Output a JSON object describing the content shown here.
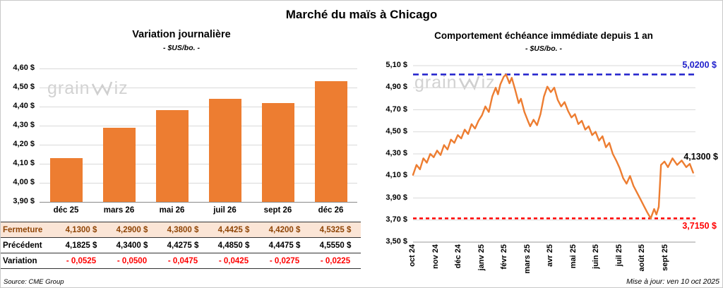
{
  "header": {
    "title": "Marché du maïs à Chicago"
  },
  "footer": {
    "source": "Source: CME Group",
    "updated": "Mise à jour: ven 10 oct 2025"
  },
  "watermark": {
    "prefix": "grain",
    "suffix": "iz"
  },
  "colors": {
    "bar": "#ED7D31",
    "line": "#ED7D31",
    "max_line": "#1F1FCC",
    "min_line": "#FF0000",
    "negative_text": "#FF0000",
    "highlight_row_bg": "#FBE5D6",
    "highlight_row_text": "#8F4506"
  },
  "chart_data": [
    {
      "type": "bar",
      "title": "Variation journalière",
      "subtitle": "- $US/bo. -",
      "categories": [
        "déc 25",
        "mars 26",
        "mai 26",
        "juil 26",
        "sept 26",
        "déc 26"
      ],
      "values": [
        4.13,
        4.29,
        4.38,
        4.4425,
        4.42,
        4.5325
      ],
      "ylim": [
        3.9,
        4.6
      ],
      "y_ticks": [
        "4,60 $",
        "4,50 $",
        "4,40 $",
        "4,30 $",
        "4,20 $",
        "4,10 $",
        "4,00 $",
        "3,90 $"
      ],
      "grid": true,
      "table": {
        "rows": [
          {
            "label": "Fermeture",
            "style": "highlight",
            "values": [
              "4,1300  $",
              "4,2900  $",
              "4,3800  $",
              "4,4425  $",
              "4,4200  $",
              "4,5325  $"
            ]
          },
          {
            "label": "Précédent",
            "style": "normal",
            "values": [
              "4,1825  $",
              "4,3400  $",
              "4,4275  $",
              "4,4850  $",
              "4,4475  $",
              "4,5550  $"
            ]
          },
          {
            "label": "Variation",
            "style": "negative",
            "values": [
              "- 0,0525",
              "- 0,0500",
              "- 0,0475",
              "- 0,0425",
              "- 0,0275",
              "- 0,0225"
            ]
          }
        ]
      }
    },
    {
      "type": "line",
      "title": "Comportement échéance immédiate depuis 1 an",
      "subtitle": "- $US/bo. -",
      "x_ticks": [
        "oct 24",
        "nov 24",
        "déc 24",
        "janv 25",
        "févr 25",
        "mars 25",
        "avr 25",
        "mai 25",
        "juin 25",
        "juil 25",
        "août 25",
        "sept 25"
      ],
      "xlim": [
        0,
        12.3
      ],
      "ylim": [
        3.5,
        5.1
      ],
      "y_ticks": [
        "5,10 $",
        "4,90 $",
        "4,70 $",
        "4,50 $",
        "4,30 $",
        "4,10 $",
        "3,90 $",
        "3,70 $",
        "3,50 $"
      ],
      "grid": true,
      "max_annotation": {
        "value": 5.02,
        "label": "5,0200 $"
      },
      "min_annotation": {
        "value": 3.715,
        "label": "3,7150 $"
      },
      "last_annotation": {
        "value": 4.13,
        "label": "4,1300 $"
      },
      "series": [
        {
          "points": [
            [
              0,
              4.11
            ],
            [
              0.15,
              4.2
            ],
            [
              0.3,
              4.16
            ],
            [
              0.45,
              4.26
            ],
            [
              0.6,
              4.22
            ],
            [
              0.75,
              4.3
            ],
            [
              0.9,
              4.27
            ],
            [
              1.05,
              4.33
            ],
            [
              1.2,
              4.29
            ],
            [
              1.35,
              4.38
            ],
            [
              1.5,
              4.34
            ],
            [
              1.65,
              4.43
            ],
            [
              1.8,
              4.4
            ],
            [
              1.95,
              4.47
            ],
            [
              2.1,
              4.44
            ],
            [
              2.25,
              4.52
            ],
            [
              2.4,
              4.48
            ],
            [
              2.55,
              4.57
            ],
            [
              2.7,
              4.53
            ],
            [
              2.85,
              4.6
            ],
            [
              3,
              4.65
            ],
            [
              3.15,
              4.73
            ],
            [
              3.3,
              4.68
            ],
            [
              3.45,
              4.82
            ],
            [
              3.6,
              4.9
            ],
            [
              3.7,
              4.84
            ],
            [
              3.8,
              4.93
            ],
            [
              3.95,
              5
            ],
            [
              4.05,
              5.02
            ],
            [
              4.2,
              4.94
            ],
            [
              4.3,
              4.99
            ],
            [
              4.45,
              4.88
            ],
            [
              4.6,
              4.76
            ],
            [
              4.7,
              4.8
            ],
            [
              4.85,
              4.68
            ],
            [
              5,
              4.6
            ],
            [
              5.1,
              4.55
            ],
            [
              5.25,
              4.61
            ],
            [
              5.4,
              4.56
            ],
            [
              5.55,
              4.66
            ],
            [
              5.7,
              4.82
            ],
            [
              5.85,
              4.91
            ],
            [
              6,
              4.86
            ],
            [
              6.15,
              4.9
            ],
            [
              6.3,
              4.79
            ],
            [
              6.45,
              4.73
            ],
            [
              6.6,
              4.77
            ],
            [
              6.75,
              4.69
            ],
            [
              6.9,
              4.63
            ],
            [
              7.05,
              4.66
            ],
            [
              7.2,
              4.57
            ],
            [
              7.35,
              4.6
            ],
            [
              7.5,
              4.52
            ],
            [
              7.65,
              4.55
            ],
            [
              7.8,
              4.47
            ],
            [
              7.95,
              4.5
            ],
            [
              8.1,
              4.42
            ],
            [
              8.25,
              4.46
            ],
            [
              8.4,
              4.36
            ],
            [
              8.55,
              4.4
            ],
            [
              8.7,
              4.3
            ],
            [
              8.85,
              4.24
            ],
            [
              9,
              4.17
            ],
            [
              9.15,
              4.08
            ],
            [
              9.3,
              4.03
            ],
            [
              9.45,
              4.1
            ],
            [
              9.6,
              4.01
            ],
            [
              9.75,
              3.95
            ],
            [
              9.9,
              3.89
            ],
            [
              10.05,
              3.83
            ],
            [
              10.2,
              3.77
            ],
            [
              10.35,
              3.715
            ],
            [
              10.5,
              3.8
            ],
            [
              10.6,
              3.75
            ],
            [
              10.7,
              3.82
            ],
            [
              10.8,
              4.2
            ],
            [
              10.95,
              4.23
            ],
            [
              11.1,
              4.18
            ],
            [
              11.3,
              4.26
            ],
            [
              11.5,
              4.2
            ],
            [
              11.7,
              4.24
            ],
            [
              11.9,
              4.18
            ],
            [
              12.05,
              4.21
            ],
            [
              12.2,
              4.13
            ]
          ]
        }
      ]
    }
  ]
}
